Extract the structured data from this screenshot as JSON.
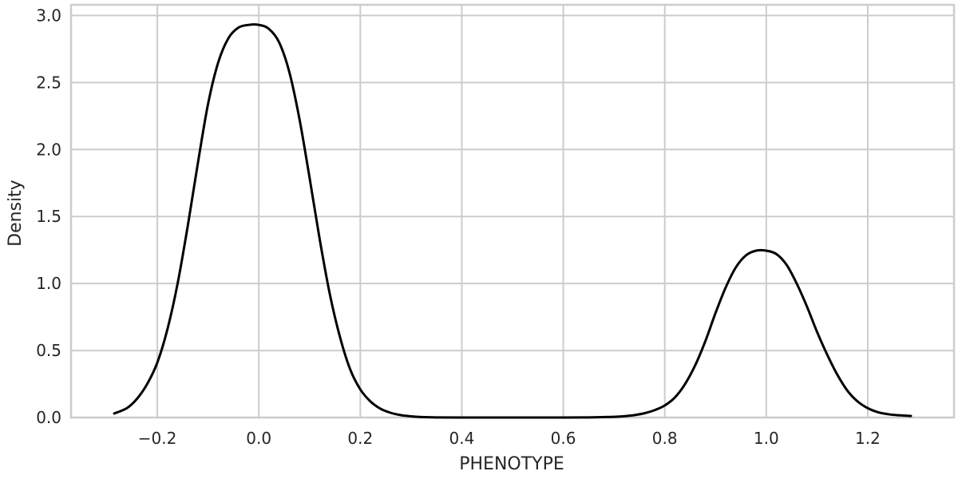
{
  "chart_data": {
    "type": "line",
    "xlabel": "PHENOTYPE",
    "ylabel": "Density",
    "xlim": [
      -0.37,
      1.37
    ],
    "ylim": [
      0.0,
      3.08
    ],
    "grid": true,
    "x_ticks": [
      -0.2,
      0.0,
      0.2,
      0.4,
      0.6,
      0.8,
      1.0,
      1.2
    ],
    "x_tick_labels": [
      "−0.2",
      "0.0",
      "0.2",
      "0.4",
      "0.6",
      "0.8",
      "1.0",
      "1.2"
    ],
    "y_ticks": [
      0.0,
      0.5,
      1.0,
      1.5,
      2.0,
      2.5,
      3.0
    ],
    "y_tick_labels": [
      "0.0",
      "0.5",
      "1.0",
      "1.5",
      "2.0",
      "2.5",
      "3.0"
    ],
    "series": [
      {
        "color": "#000000",
        "x": [
          -0.285,
          -0.26,
          -0.24,
          -0.22,
          -0.2,
          -0.18,
          -0.16,
          -0.14,
          -0.12,
          -0.1,
          -0.08,
          -0.06,
          -0.04,
          -0.02,
          0.0,
          0.02,
          0.04,
          0.06,
          0.08,
          0.1,
          0.12,
          0.14,
          0.16,
          0.18,
          0.2,
          0.22,
          0.24,
          0.26,
          0.28,
          0.3,
          0.32,
          0.35,
          0.4,
          0.5,
          0.6,
          0.65,
          0.7,
          0.72,
          0.74,
          0.76,
          0.78,
          0.8,
          0.82,
          0.84,
          0.86,
          0.88,
          0.9,
          0.92,
          0.94,
          0.96,
          0.98,
          1.0,
          1.02,
          1.04,
          1.06,
          1.08,
          1.1,
          1.12,
          1.14,
          1.16,
          1.18,
          1.2,
          1.22,
          1.24,
          1.26,
          1.285
        ],
        "y": [
          0.03,
          0.07,
          0.14,
          0.25,
          0.41,
          0.66,
          1.0,
          1.43,
          1.9,
          2.34,
          2.65,
          2.83,
          2.91,
          2.93,
          2.93,
          2.9,
          2.8,
          2.58,
          2.23,
          1.79,
          1.33,
          0.92,
          0.6,
          0.36,
          0.21,
          0.12,
          0.065,
          0.035,
          0.018,
          0.009,
          0.004,
          0.001,
          0.0,
          0.0,
          0.0,
          0.001,
          0.005,
          0.01,
          0.018,
          0.032,
          0.055,
          0.09,
          0.15,
          0.25,
          0.39,
          0.57,
          0.78,
          0.97,
          1.12,
          1.21,
          1.245,
          1.245,
          1.22,
          1.14,
          1.0,
          0.83,
          0.64,
          0.47,
          0.32,
          0.2,
          0.12,
          0.07,
          0.04,
          0.025,
          0.017,
          0.012
        ]
      }
    ]
  }
}
